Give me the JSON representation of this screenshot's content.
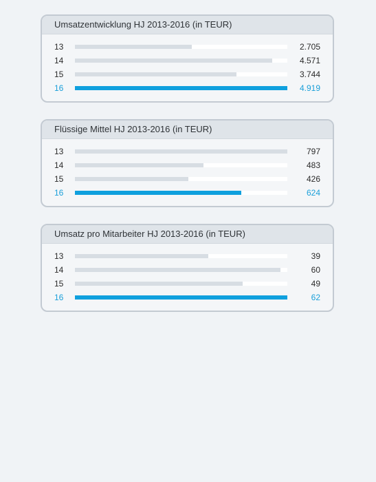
{
  "chart_data": [
    {
      "type": "bar",
      "title": "Umsatzentwicklung HJ 2013-2016 (in TEUR)",
      "categories": [
        "13",
        "14",
        "15",
        "16"
      ],
      "values": [
        2705,
        4571,
        3744,
        4919
      ],
      "value_labels": [
        "2.705",
        "4.571",
        "3.744",
        "4.919"
      ],
      "highlight_index": 3,
      "colors": {
        "bar": "#d7dde3",
        "highlight": "#0fa0de"
      }
    },
    {
      "type": "bar",
      "title": "Flüssige Mittel HJ 2013-2016 (in TEUR)",
      "categories": [
        "13",
        "14",
        "15",
        "16"
      ],
      "values": [
        797,
        483,
        426,
        624
      ],
      "value_labels": [
        "797",
        "483",
        "426",
        "624"
      ],
      "highlight_index": 3,
      "colors": {
        "bar": "#d7dde3",
        "highlight": "#0fa0de"
      }
    },
    {
      "type": "bar",
      "title": "Umsatz pro Mitarbeiter HJ 2013-2016 (in TEUR)",
      "categories": [
        "13",
        "14",
        "15",
        "16"
      ],
      "values": [
        39,
        60,
        49,
        62
      ],
      "value_labels": [
        "39",
        "60",
        "49",
        "62"
      ],
      "highlight_index": 3,
      "colors": {
        "bar": "#d7dde3",
        "highlight": "#0fa0de"
      }
    }
  ]
}
